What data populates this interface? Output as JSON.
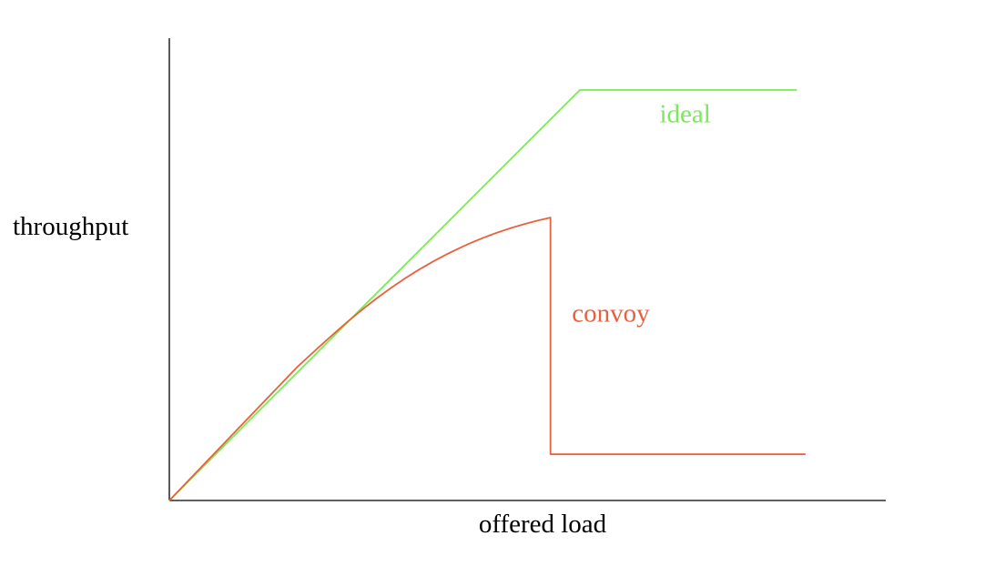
{
  "chart_data": {
    "type": "line",
    "xlabel": "offered load",
    "ylabel": "throughput",
    "xlim": [
      0,
      100
    ],
    "ylim": [
      0,
      100
    ],
    "grid": false,
    "series": [
      {
        "name": "ideal",
        "color": "#7ee85c",
        "points": [
          [
            0,
            0
          ],
          [
            57.3,
            88.8
          ],
          [
            87.6,
            88.8
          ]
        ]
      },
      {
        "name": "convoy",
        "color": "#e8603c",
        "points": [
          [
            0,
            0
          ],
          [
            10,
            15.8
          ],
          [
            17.8,
            28.8
          ],
          [
            22,
            34.6
          ],
          [
            27,
            40.0
          ],
          [
            32,
            44.0
          ],
          [
            37,
            47.2
          ],
          [
            42,
            49.8
          ],
          [
            47,
            51.8
          ],
          [
            53.2,
            61.2
          ],
          [
            53.2,
            10.0
          ],
          [
            88.8,
            10.0
          ]
        ]
      }
    ]
  }
}
